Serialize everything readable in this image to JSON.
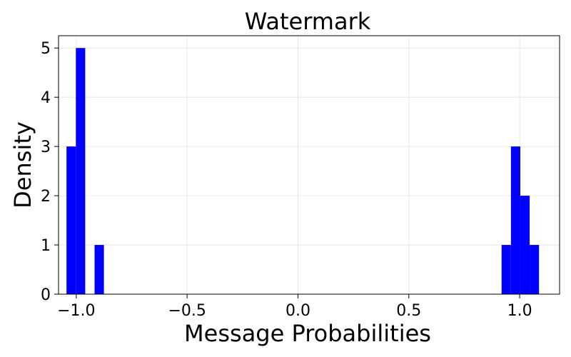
{
  "chart_data": {
    "type": "bar",
    "title": "Watermark",
    "xlabel": "Message Probabilities",
    "ylabel": "Density",
    "xlim": [
      -1.08,
      1.18
    ],
    "ylim": [
      0,
      5.25
    ],
    "grid": true,
    "bar_color": "#0000ff",
    "bin_width": 0.0422,
    "bins": [
      {
        "x0": -1.044,
        "density": 3
      },
      {
        "x0": -1.0018,
        "density": 5
      },
      {
        "x0": -0.9174,
        "density": 1
      },
      {
        "x0": 0.9184,
        "density": 1
      },
      {
        "x0": 0.9606,
        "density": 3
      },
      {
        "x0": 1.0028,
        "density": 2
      },
      {
        "x0": 1.045,
        "density": 1
      }
    ],
    "xticks": [
      {
        "value": -1.0,
        "label": "−1.0"
      },
      {
        "value": -0.5,
        "label": "−0.5"
      },
      {
        "value": 0.0,
        "label": "0.0"
      },
      {
        "value": 0.5,
        "label": "0.5"
      },
      {
        "value": 1.0,
        "label": "1.0"
      }
    ],
    "yticks": [
      {
        "value": 0,
        "label": "0"
      },
      {
        "value": 1,
        "label": "1"
      },
      {
        "value": 2,
        "label": "2"
      },
      {
        "value": 3,
        "label": "3"
      },
      {
        "value": 4,
        "label": "4"
      },
      {
        "value": 5,
        "label": "5"
      }
    ]
  }
}
